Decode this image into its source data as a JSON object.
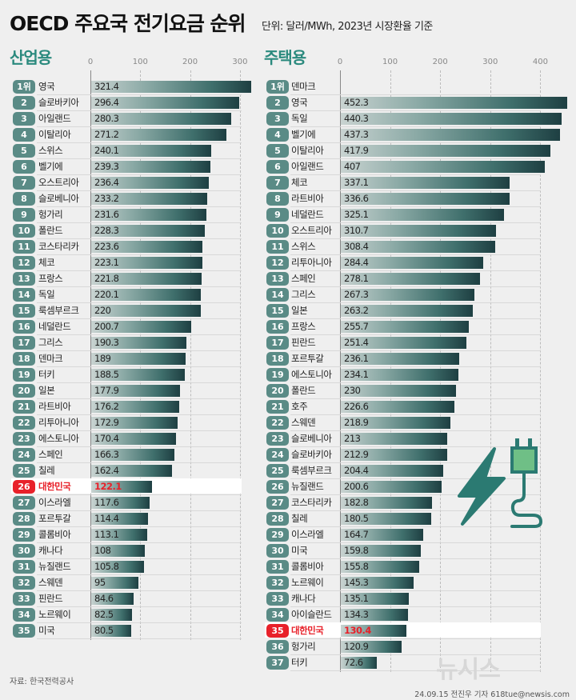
{
  "title": "OECD 주요국 전기요금 순위",
  "subtitle": "단위: 달러/MWh, 2023년 시장환율 기준",
  "source": "자료: 한국전력공사",
  "credit": "24.09.15 전진우 기자 618tue@newsis.com",
  "watermark": "뉴시스",
  "colors": {
    "accent": "#2b8a7e",
    "badge": "#5a8b86",
    "highlight": "#e8212a",
    "bar_dark": "#1e3f42",
    "plug_fill": "#6fbf86"
  },
  "icons": [
    "lightning-icon",
    "plug-icon"
  ],
  "chart_data": [
    {
      "type": "bar",
      "orientation": "horizontal",
      "title": "산업용",
      "xlim": [
        0,
        330
      ],
      "ticks": [
        "0",
        "100",
        "200",
        "300"
      ],
      "grid": true,
      "highlight": "대한민국",
      "ranks": [
        "1위",
        "2",
        "3",
        "4",
        "5",
        "6",
        "7",
        "8",
        "9",
        "10",
        "11",
        "12",
        "13",
        "14",
        "15",
        "16",
        "17",
        "18",
        "19",
        "20",
        "21",
        "22",
        "23",
        "24",
        "25",
        "26",
        "27",
        "28",
        "29",
        "30",
        "31",
        "32",
        "33",
        "34",
        "35"
      ],
      "categories": [
        "영국",
        "슬로바키아",
        "아일랜드",
        "이탈리아",
        "스위스",
        "벨기에",
        "오스트리아",
        "슬로베니아",
        "헝가리",
        "폴란드",
        "코스타리카",
        "체코",
        "프랑스",
        "독일",
        "룩셈부르크",
        "네덜란드",
        "그리스",
        "덴마크",
        "터키",
        "일본",
        "라트비아",
        "리투아니아",
        "에스토니아",
        "스페인",
        "칠레",
        "대한민국",
        "이스라엘",
        "포르투갈",
        "콜롬비아",
        "캐나다",
        "뉴질랜드",
        "스웨덴",
        "핀란드",
        "노르웨이",
        "미국"
      ],
      "values": [
        321.4,
        296.4,
        280.3,
        271.2,
        240.1,
        239.3,
        236.4,
        233.2,
        231.6,
        228.3,
        223.6,
        223.1,
        221.8,
        220.1,
        220,
        200.7,
        190.3,
        189,
        188.5,
        177.9,
        176.2,
        172.9,
        170.4,
        166.3,
        162.4,
        122.1,
        117.6,
        114.4,
        113.1,
        108,
        105.8,
        95,
        84.6,
        82.5,
        80.5
      ]
    },
    {
      "type": "bar",
      "orientation": "horizontal",
      "title": "주택용",
      "xlim": [
        0,
        450
      ],
      "ticks": [
        "0",
        "100",
        "200",
        "300",
        "400"
      ],
      "grid": true,
      "highlight": "대한민국",
      "ranks": [
        "1위",
        "2",
        "3",
        "4",
        "5",
        "6",
        "7",
        "8",
        "9",
        "10",
        "11",
        "12",
        "13",
        "14",
        "15",
        "16",
        "17",
        "18",
        "19",
        "20",
        "21",
        "22",
        "23",
        "24",
        "25",
        "26",
        "27",
        "28",
        "29",
        "30",
        "31",
        "32",
        "33",
        "34",
        "35",
        "36",
        "37"
      ],
      "categories": [
        "덴마크",
        "영국",
        "독일",
        "벨기에",
        "이탈리아",
        "아일랜드",
        "체코",
        "라트비아",
        "네덜란드",
        "오스트리아",
        "스위스",
        "리투아니아",
        "스페인",
        "그리스",
        "일본",
        "프랑스",
        "핀란드",
        "포르투갈",
        "에스토니아",
        "폴란드",
        "호주",
        "스웨덴",
        "슬로베니아",
        "슬로바키아",
        "룩셈부르크",
        "뉴질랜드",
        "코스타리카",
        "칠레",
        "이스라엘",
        "미국",
        "콜롬비아",
        "노르웨이",
        "캐나다",
        "아이슬란드",
        "대한민국",
        "헝가리",
        "터키"
      ],
      "values": [
        null,
        452.3,
        440.3,
        437.3,
        417.9,
        407,
        337.1,
        336.6,
        325.1,
        310.7,
        308.4,
        284.4,
        278.1,
        267.3,
        263.2,
        255.7,
        251.4,
        236.1,
        234.1,
        230,
        226.6,
        218.9,
        213,
        212.9,
        204.4,
        200.6,
        182.8,
        180.5,
        164.7,
        159.8,
        155.8,
        145.3,
        135.1,
        134.3,
        130.4,
        120.9,
        72.6
      ]
    }
  ]
}
